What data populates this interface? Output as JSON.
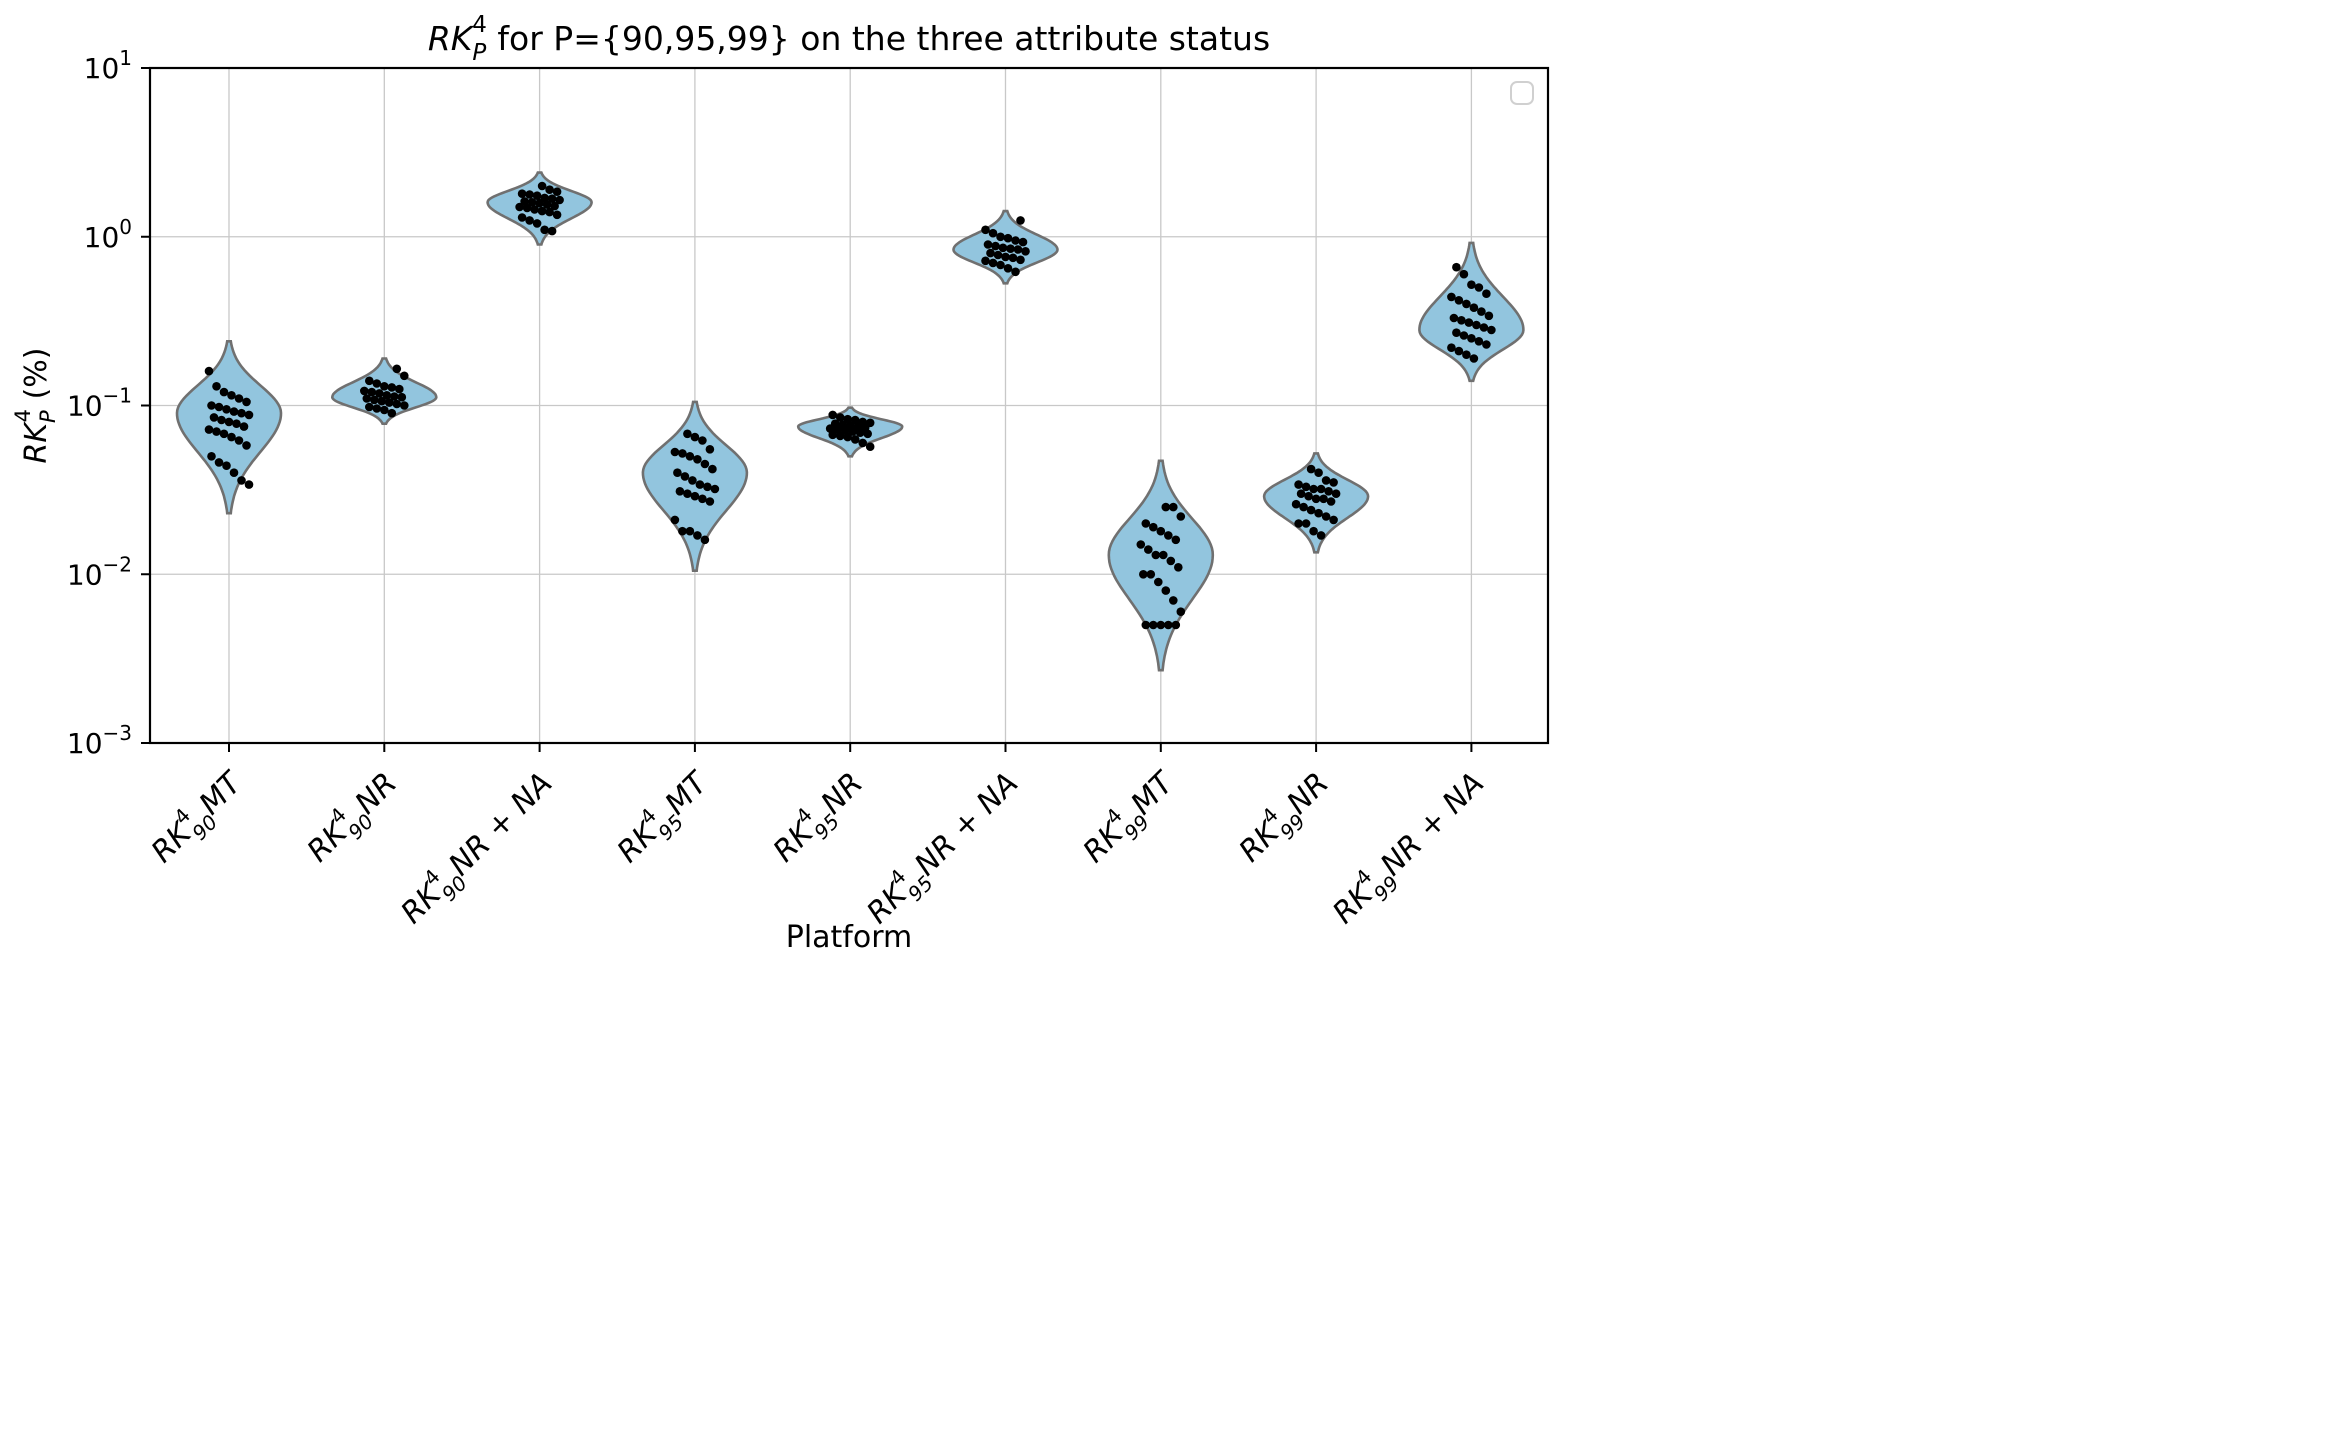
{
  "chart_data": {
    "type": "violin",
    "title": {
      "base": "RK",
      "sub": "P",
      "sup": "4",
      "rest": " for P={90,95,99} on the three attribute status"
    },
    "xlabel": "Platform",
    "ylabel": {
      "base": "RK",
      "sub": "P",
      "sup": "4",
      "rest": " (%)"
    },
    "yscale": "log",
    "ylim": [
      0.001,
      10
    ],
    "yticks": [
      {
        "value": 0.001,
        "base": "10",
        "exp": "−3"
      },
      {
        "value": 0.01,
        "base": "10",
        "exp": "−2"
      },
      {
        "value": 0.1,
        "base": "10",
        "exp": "−1"
      },
      {
        "value": 1,
        "base": "10",
        "exp": "0"
      },
      {
        "value": 10,
        "base": "10",
        "exp": "1"
      }
    ],
    "grid": true,
    "legend": "upper right (empty)",
    "colors": {
      "violin_fill": "#92c5de",
      "violin_edge": "#707070",
      "points": "#000000",
      "grid": "#c8c8c8"
    },
    "categories": [
      {
        "base": "RK",
        "sup": "4",
        "sub": "90",
        "rest": "MT"
      },
      {
        "base": "RK",
        "sup": "4",
        "sub": "90",
        "rest": "NR"
      },
      {
        "base": "RK",
        "sup": "4",
        "sub": "90",
        "rest": "NR + NA"
      },
      {
        "base": "RK",
        "sup": "4",
        "sub": "95",
        "rest": "MT"
      },
      {
        "base": "RK",
        "sup": "4",
        "sub": "95",
        "rest": "NR"
      },
      {
        "base": "RK",
        "sup": "4",
        "sub": "95",
        "rest": "NR + NA"
      },
      {
        "base": "RK",
        "sup": "4",
        "sub": "99",
        "rest": "MT"
      },
      {
        "base": "RK",
        "sup": "4",
        "sub": "99",
        "rest": "NR"
      },
      {
        "base": "RK",
        "sup": "4",
        "sub": "99",
        "rest": "NR + NA"
      }
    ],
    "series": [
      {
        "min": 0.023,
        "max": 0.24,
        "mode": 0.09,
        "values": [
          0.16,
          0.13,
          0.12,
          0.115,
          0.11,
          0.105,
          0.1,
          0.098,
          0.095,
          0.092,
          0.09,
          0.088,
          0.085,
          0.082,
          0.08,
          0.078,
          0.075,
          0.072,
          0.07,
          0.068,
          0.065,
          0.062,
          0.058,
          0.05,
          0.046,
          0.044,
          0.04,
          0.036,
          0.034
        ]
      },
      {
        "min": 0.078,
        "max": 0.19,
        "mode": 0.112,
        "values": [
          0.165,
          0.15,
          0.14,
          0.135,
          0.13,
          0.128,
          0.125,
          0.122,
          0.12,
          0.118,
          0.115,
          0.113,
          0.112,
          0.11,
          0.108,
          0.106,
          0.104,
          0.102,
          0.1,
          0.098,
          0.096,
          0.094,
          0.09
        ]
      },
      {
        "min": 0.9,
        "max": 2.4,
        "mode": 1.6,
        "values": [
          2.0,
          1.9,
          1.85,
          1.8,
          1.78,
          1.75,
          1.7,
          1.68,
          1.65,
          1.62,
          1.6,
          1.58,
          1.55,
          1.52,
          1.5,
          1.48,
          1.45,
          1.42,
          1.4,
          1.35,
          1.3,
          1.25,
          1.2,
          1.1,
          1.08
        ]
      },
      {
        "min": 0.0105,
        "max": 0.105,
        "mode": 0.04,
        "values": [
          0.068,
          0.065,
          0.062,
          0.055,
          0.053,
          0.052,
          0.05,
          0.048,
          0.045,
          0.042,
          0.04,
          0.038,
          0.036,
          0.034,
          0.033,
          0.032,
          0.031,
          0.03,
          0.029,
          0.028,
          0.027,
          0.021,
          0.018,
          0.018,
          0.017,
          0.016
        ]
      },
      {
        "min": 0.05,
        "max": 0.097,
        "mode": 0.075,
        "values": [
          0.088,
          0.085,
          0.083,
          0.082,
          0.08,
          0.079,
          0.078,
          0.077,
          0.076,
          0.075,
          0.074,
          0.073,
          0.072,
          0.071,
          0.07,
          0.069,
          0.068,
          0.067,
          0.066,
          0.065,
          0.063,
          0.06,
          0.057
        ]
      },
      {
        "min": 0.53,
        "max": 1.42,
        "mode": 0.84,
        "values": [
          1.25,
          1.1,
          1.05,
          1.0,
          0.98,
          0.95,
          0.93,
          0.9,
          0.88,
          0.86,
          0.85,
          0.84,
          0.82,
          0.8,
          0.78,
          0.76,
          0.75,
          0.73,
          0.72,
          0.7,
          0.68,
          0.65,
          0.62
        ]
      },
      {
        "min": 0.0027,
        "max": 0.047,
        "mode": 0.013,
        "values": [
          0.025,
          0.025,
          0.022,
          0.02,
          0.019,
          0.018,
          0.017,
          0.016,
          0.015,
          0.014,
          0.013,
          0.013,
          0.012,
          0.011,
          0.01,
          0.01,
          0.009,
          0.008,
          0.007,
          0.006,
          0.005,
          0.005,
          0.005,
          0.005,
          0.005
        ]
      },
      {
        "min": 0.0135,
        "max": 0.052,
        "mode": 0.029,
        "values": [
          0.042,
          0.04,
          0.036,
          0.035,
          0.034,
          0.033,
          0.032,
          0.032,
          0.031,
          0.03,
          0.03,
          0.029,
          0.028,
          0.028,
          0.027,
          0.026,
          0.025,
          0.024,
          0.023,
          0.022,
          0.021,
          0.02,
          0.02,
          0.018,
          0.017
        ]
      },
      {
        "min": 0.14,
        "max": 0.92,
        "mode": 0.28,
        "values": [
          0.66,
          0.6,
          0.52,
          0.5,
          0.46,
          0.44,
          0.42,
          0.4,
          0.38,
          0.36,
          0.34,
          0.33,
          0.32,
          0.31,
          0.3,
          0.29,
          0.28,
          0.27,
          0.26,
          0.25,
          0.24,
          0.23,
          0.22,
          0.21,
          0.2,
          0.19
        ]
      }
    ]
  }
}
